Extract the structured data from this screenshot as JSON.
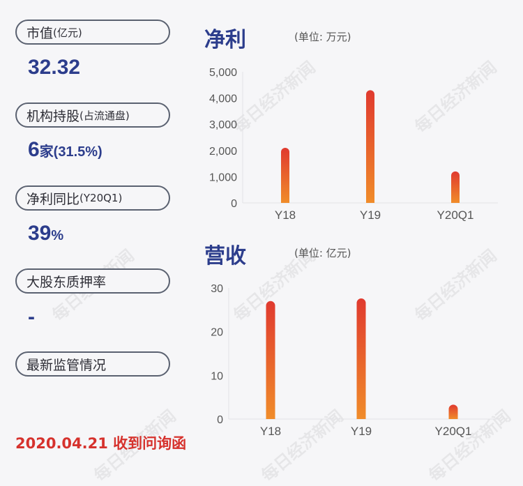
{
  "metrics": [
    {
      "label_main": "市值",
      "label_sub": "(亿元)",
      "value_main": "32.32",
      "value_sub": ""
    },
    {
      "label_main": "机构持股",
      "label_sub": "(占流通盘)",
      "value_main": "6",
      "value_sub": "家(31.5%)"
    },
    {
      "label_main": "净利同比",
      "label_sub": "(Y20Q1)",
      "value_main": "39",
      "value_sub": "%"
    },
    {
      "label_main": "大股东质押率",
      "label_sub": "",
      "value_main": "-",
      "value_sub": ""
    },
    {
      "label_main": "最新监管情况",
      "label_sub": "",
      "value_main": "",
      "value_sub": ""
    }
  ],
  "footer": "2020.04.21 收到问询函",
  "watermark": "每日经济新闻",
  "colors": {
    "accent": "#2c3d8c",
    "alert": "#d6322d",
    "bar_top": "#e03a2f",
    "bar_bottom": "#f08c2a"
  },
  "chart_data": [
    {
      "type": "bar",
      "title": "净利",
      "unit": "(单位: 万元)",
      "categories": [
        "Y18",
        "Y19",
        "Y20Q1"
      ],
      "values": [
        2100,
        4300,
        1200
      ],
      "ylim": [
        0,
        5000
      ],
      "yticks": [
        0,
        1000,
        2000,
        3000,
        4000,
        5000
      ],
      "ytick_labels": [
        "0",
        "1,000",
        "2,000",
        "3,000",
        "4,000",
        "5,000"
      ]
    },
    {
      "type": "bar",
      "title": "营收",
      "unit": "(单位: 亿元)",
      "categories": [
        "Y18",
        "Y19",
        "Y20Q1"
      ],
      "values": [
        27,
        27.6,
        3.3
      ],
      "ylim": [
        0,
        30
      ],
      "yticks": [
        0,
        10,
        20,
        30
      ],
      "ytick_labels": [
        "0",
        "10",
        "20",
        "30"
      ]
    }
  ]
}
